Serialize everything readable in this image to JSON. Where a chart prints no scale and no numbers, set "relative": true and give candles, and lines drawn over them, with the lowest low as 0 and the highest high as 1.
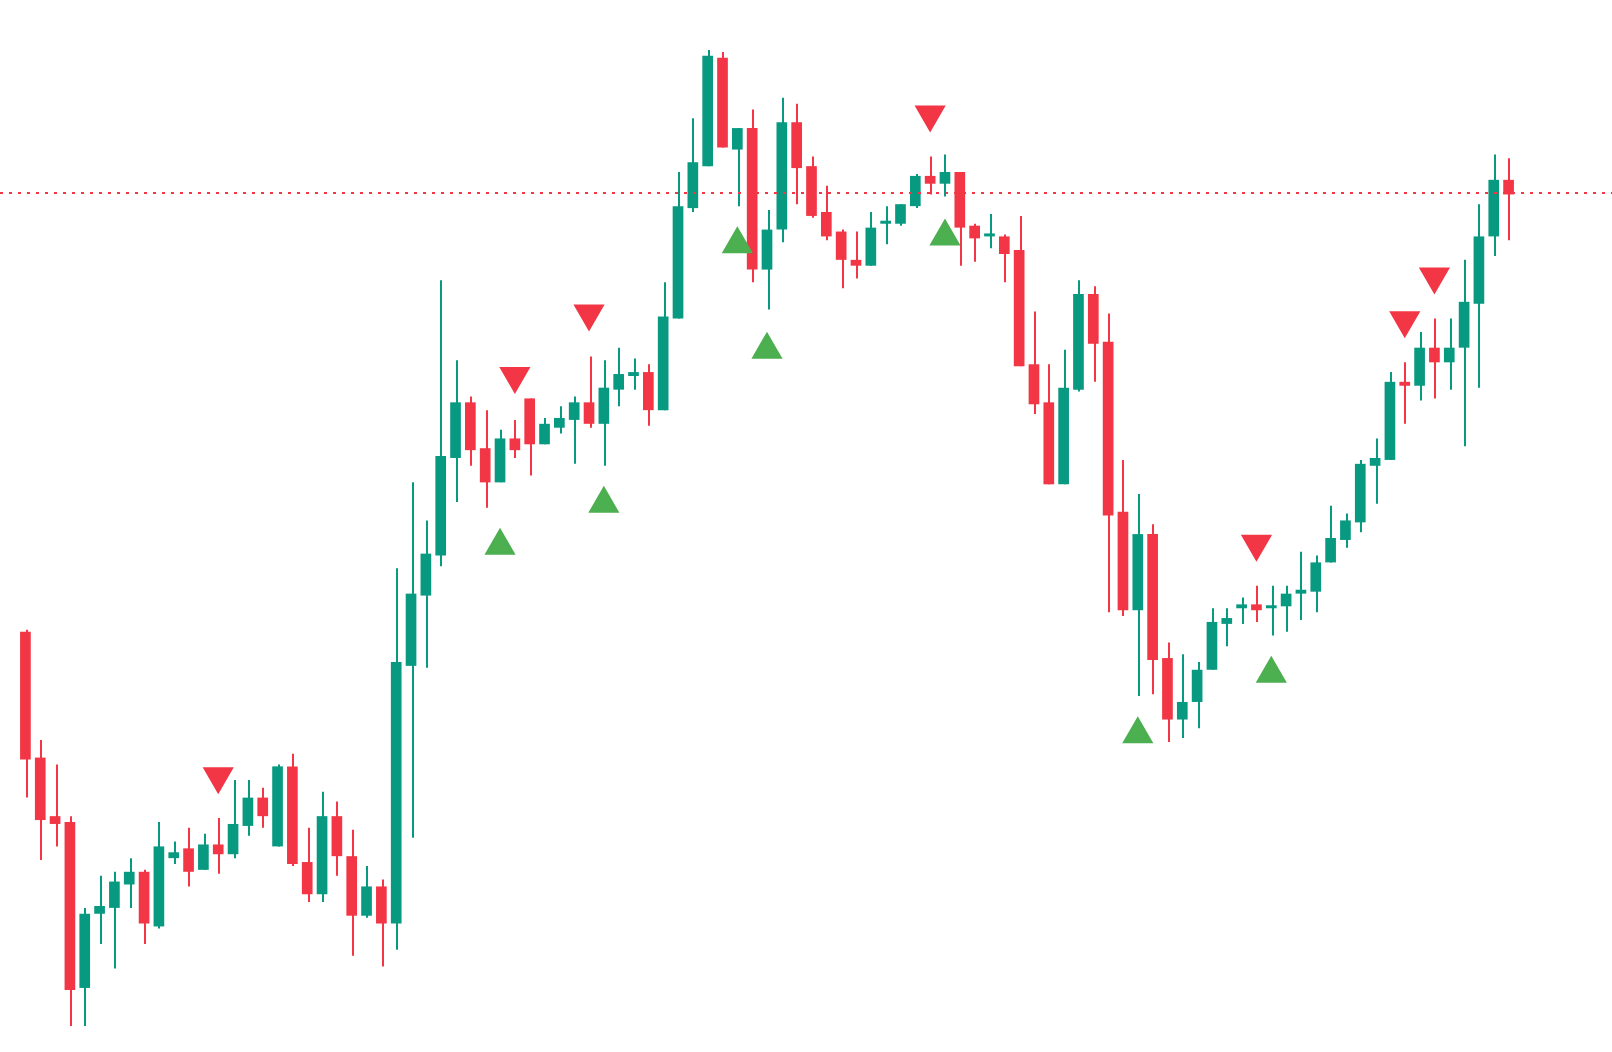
{
  "chart_data": {
    "type": "candlestick",
    "relative": true,
    "legend": false,
    "grid": false,
    "categories": [
      null,
      null,
      null,
      null,
      null,
      null,
      null,
      null,
      null,
      null,
      null,
      null,
      null,
      null,
      null,
      null,
      null,
      null,
      null,
      null,
      null,
      null,
      null,
      null,
      null,
      null,
      null,
      null,
      null,
      null,
      null,
      null,
      null,
      null,
      null,
      null,
      null,
      null,
      null,
      null,
      null,
      null,
      null,
      null,
      null,
      null,
      null,
      null,
      null,
      null,
      null,
      null,
      null,
      null,
      null,
      null,
      null,
      null,
      null,
      null,
      null,
      null,
      null,
      null,
      null,
      null,
      null,
      null,
      null,
      null,
      null,
      null,
      null,
      null,
      null,
      null,
      null,
      null,
      null,
      null,
      null,
      null,
      null,
      null,
      null,
      null,
      null,
      null,
      null,
      null,
      null,
      null,
      null,
      null,
      null,
      null,
      null,
      null,
      null,
      null,
      null
    ],
    "ohlc": [
      [
        0.404,
        0.406,
        0.234,
        0.273
      ],
      [
        0.275,
        0.293,
        0.17,
        0.211
      ],
      [
        0.215,
        0.268,
        0.184,
        0.207
      ],
      [
        0.209,
        0.215,
        0,
        0.037
      ],
      [
        0.039,
        0.121,
        0,
        0.115
      ],
      [
        0.115,
        0.154,
        0.084,
        0.123
      ],
      [
        0.121,
        0.158,
        0.059,
        0.148
      ],
      [
        0.145,
        0.172,
        0.121,
        0.158
      ],
      [
        0.158,
        0.16,
        0.084,
        0.105
      ],
      [
        0.102,
        0.209,
        0.1,
        0.184
      ],
      [
        0.172,
        0.189,
        0.166,
        0.178
      ],
      [
        0.182,
        0.203,
        0.143,
        0.158
      ],
      [
        0.16,
        0.197,
        0.16,
        0.186
      ],
      [
        0.186,
        0.213,
        0.156,
        0.176
      ],
      [
        0.176,
        0.252,
        0.172,
        0.207
      ],
      [
        0.205,
        0.252,
        0.195,
        0.234
      ],
      [
        0.234,
        0.244,
        0.203,
        0.215
      ],
      [
        0.184,
        0.268,
        0.184,
        0.266
      ],
      [
        0.266,
        0.279,
        0.164,
        0.166
      ],
      [
        0.168,
        0.203,
        0.127,
        0.135
      ],
      [
        0.135,
        0.24,
        0.127,
        0.215
      ],
      [
        0.215,
        0.23,
        0.154,
        0.174
      ],
      [
        0.174,
        0.201,
        0.072,
        0.113
      ],
      [
        0.113,
        0.164,
        0.111,
        0.143
      ],
      [
        0.143,
        0.15,
        0.061,
        0.105
      ],
      [
        0.105,
        0.469,
        0.078,
        0.373
      ],
      [
        0.369,
        0.557,
        0.193,
        0.443
      ],
      [
        0.441,
        0.518,
        0.367,
        0.484
      ],
      [
        0.482,
        0.764,
        0.471,
        0.584
      ],
      [
        0.582,
        0.682,
        0.537,
        0.639
      ],
      [
        0.639,
        0.645,
        0.574,
        0.59
      ],
      [
        0.592,
        0.631,
        0.531,
        0.557
      ],
      [
        0.557,
        0.611,
        0.557,
        0.602
      ],
      [
        0.602,
        0.621,
        0.582,
        0.59
      ],
      [
        0.643,
        0.643,
        0.564,
        0.596
      ],
      [
        0.596,
        0.623,
        0.596,
        0.617
      ],
      [
        0.613,
        0.635,
        0.607,
        0.623
      ],
      [
        0.621,
        0.645,
        0.576,
        0.639
      ],
      [
        0.639,
        0.686,
        0.613,
        0.617
      ],
      [
        0.617,
        0.682,
        0.574,
        0.654
      ],
      [
        0.652,
        0.695,
        0.635,
        0.668
      ],
      [
        0.666,
        0.684,
        0.652,
        0.67
      ],
      [
        0.67,
        0.678,
        0.615,
        0.631
      ],
      [
        0.631,
        0.762,
        0.631,
        0.727
      ],
      [
        0.725,
        0.875,
        0.725,
        0.84
      ],
      [
        0.838,
        0.93,
        0.834,
        0.885
      ],
      [
        0.881,
        1,
        0.881,
        0.994
      ],
      [
        0.992,
        0.998,
        0.9,
        0.9
      ],
      [
        0.898,
        0.92,
        0.84,
        0.92
      ],
      [
        0.92,
        0.939,
        0.762,
        0.775
      ],
      [
        0.775,
        0.836,
        0.734,
        0.816
      ],
      [
        0.816,
        0.951,
        0.803,
        0.926
      ],
      [
        0.926,
        0.945,
        0.842,
        0.879
      ],
      [
        0.881,
        0.891,
        0.828,
        0.83
      ],
      [
        0.834,
        0.861,
        0.805,
        0.809
      ],
      [
        0.814,
        0.816,
        0.756,
        0.785
      ],
      [
        0.785,
        0.814,
        0.766,
        0.779
      ],
      [
        0.779,
        0.834,
        0.779,
        0.818
      ],
      [
        0.822,
        0.84,
        0.801,
        0.824
      ],
      [
        0.822,
        0.842,
        0.82,
        0.842
      ],
      [
        0.84,
        0.873,
        0.838,
        0.871
      ],
      [
        0.871,
        0.891,
        0.852,
        0.863
      ],
      [
        0.863,
        0.893,
        0.85,
        0.875
      ],
      [
        0.875,
        0.875,
        0.779,
        0.818
      ],
      [
        0.82,
        0.822,
        0.783,
        0.807
      ],
      [
        0.809,
        0.832,
        0.797,
        0.811
      ],
      [
        0.809,
        0.811,
        0.762,
        0.791
      ],
      [
        0.795,
        0.83,
        0.676,
        0.676
      ],
      [
        0.678,
        0.732,
        0.627,
        0.637
      ],
      [
        0.639,
        0.678,
        0.555,
        0.555
      ],
      [
        0.555,
        0.693,
        0.555,
        0.654
      ],
      [
        0.652,
        0.764,
        0.65,
        0.75
      ],
      [
        0.75,
        0.758,
        0.66,
        0.699
      ],
      [
        0.701,
        0.73,
        0.424,
        0.523
      ],
      [
        0.527,
        0.58,
        0.42,
        0.426
      ],
      [
        0.426,
        0.545,
        0.338,
        0.504
      ],
      [
        0.504,
        0.514,
        0.34,
        0.375
      ],
      [
        0.377,
        0.393,
        0.291,
        0.314
      ],
      [
        0.314,
        0.381,
        0.295,
        0.332
      ],
      [
        0.332,
        0.373,
        0.305,
        0.365
      ],
      [
        0.365,
        0.428,
        0.365,
        0.414
      ],
      [
        0.412,
        0.428,
        0.389,
        0.418
      ],
      [
        0.428,
        0.439,
        0.412,
        0.432
      ],
      [
        0.432,
        0.451,
        0.414,
        0.426
      ],
      [
        0.428,
        0.451,
        0.4,
        0.43
      ],
      [
        0.43,
        0.451,
        0.404,
        0.443
      ],
      [
        0.443,
        0.486,
        0.416,
        0.447
      ],
      [
        0.445,
        0.482,
        0.424,
        0.475
      ],
      [
        0.475,
        0.533,
        0.475,
        0.5
      ],
      [
        0.498,
        0.525,
        0.49,
        0.518
      ],
      [
        0.516,
        0.58,
        0.506,
        0.576
      ],
      [
        0.574,
        0.602,
        0.535,
        0.582
      ],
      [
        0.58,
        0.67,
        0.58,
        0.66
      ],
      [
        0.66,
        0.68,
        0.617,
        0.656
      ],
      [
        0.656,
        0.711,
        0.641,
        0.695
      ],
      [
        0.695,
        0.725,
        0.643,
        0.68
      ],
      [
        0.68,
        0.725,
        0.652,
        0.695
      ],
      [
        0.695,
        0.785,
        0.594,
        0.742
      ],
      [
        0.74,
        0.842,
        0.654,
        0.809
      ],
      [
        0.809,
        0.893,
        0.789,
        0.867
      ],
      [
        0.867,
        0.889,
        0.805,
        0.852
      ]
    ],
    "colors": [
      "#f23645",
      "#f23645",
      "#f23645",
      "#f23645",
      "#089981",
      "#089981",
      "#089981",
      "#089981",
      "#f23645",
      "#089981",
      "#089981",
      "#f23645",
      "#089981",
      "#f23645",
      "#089981",
      "#089981",
      "#f23645",
      "#089981",
      "#f23645",
      "#f23645",
      "#089981",
      "#f23645",
      "#f23645",
      "#089981",
      "#f23645",
      "#089981",
      "#089981",
      "#089981",
      "#089981",
      "#089981",
      "#f23645",
      "#f23645",
      "#089981",
      "#f23645",
      "#f23645",
      "#089981",
      "#089981",
      "#089981",
      "#f23645",
      "#089981",
      "#089981",
      "#089981",
      "#f23645",
      "#089981",
      "#089981",
      "#089981",
      "#089981",
      "#f23645",
      "#089981",
      "#f23645",
      "#089981",
      "#089981",
      "#f23645",
      "#f23645",
      "#f23645",
      "#f23645",
      "#f23645",
      "#089981",
      "#089981",
      "#089981",
      "#089981",
      "#f23645",
      "#089981",
      "#f23645",
      "#f23645",
      "#089981",
      "#f23645",
      "#f23645",
      "#f23645",
      "#f23645",
      "#089981",
      "#089981",
      "#f23645",
      "#f23645",
      "#f23645",
      "#089981",
      "#f23645",
      "#f23645",
      "#089981",
      "#089981",
      "#089981",
      "#089981",
      "#089981",
      "#f23645",
      "#089981",
      "#089981",
      "#089981",
      "#089981",
      "#089981",
      "#089981",
      "#089981",
      "#089981",
      "#089981",
      "#f23645",
      "#089981",
      "#f23645",
      "#089981",
      "#089981",
      "#089981",
      "#089981",
      "#f23645"
    ],
    "series": [
      {
        "type": "scatter",
        "marker": "triangle",
        "color": "#f23645",
        "values": [
          null,
          null,
          null,
          null,
          null,
          null,
          null,
          null,
          null,
          null,
          null,
          null,
          null,
          0.256,
          null,
          null,
          null,
          null,
          null,
          null,
          null,
          null,
          null,
          null,
          null,
          null,
          null,
          null,
          null,
          null,
          null,
          null,
          null,
          0.666,
          null,
          null,
          null,
          null,
          0.73,
          null,
          null,
          null,
          null,
          null,
          null,
          null,
          null,
          null,
          null,
          null,
          null,
          null,
          null,
          null,
          null,
          null,
          null,
          null,
          null,
          null,
          null,
          0.934,
          null,
          null,
          null,
          null,
          null,
          null,
          null,
          null,
          null,
          null,
          null,
          null,
          null,
          null,
          null,
          null,
          null,
          null,
          null,
          null,
          null,
          0.494,
          null,
          null,
          null,
          null,
          null,
          null,
          null,
          null,
          null,
          0.723,
          null,
          0.768,
          null,
          null,
          null,
          null,
          null
        ]
      },
      {
        "type": "scatter",
        "marker": "triangle",
        "color": "#4caf50",
        "values": [
          null,
          null,
          null,
          null,
          null,
          null,
          null,
          null,
          null,
          null,
          null,
          null,
          null,
          null,
          null,
          null,
          null,
          null,
          null,
          null,
          null,
          null,
          null,
          null,
          null,
          null,
          null,
          null,
          null,
          null,
          null,
          null,
          0.492,
          null,
          null,
          null,
          null,
          null,
          null,
          0.535,
          null,
          null,
          null,
          null,
          null,
          null,
          null,
          null,
          0.801,
          null,
          0.693,
          null,
          null,
          null,
          null,
          null,
          null,
          null,
          null,
          null,
          null,
          null,
          0.809,
          null,
          null,
          null,
          null,
          null,
          null,
          null,
          null,
          null,
          null,
          null,
          null,
          0.299,
          null,
          null,
          null,
          null,
          null,
          null,
          null,
          null,
          0.361,
          null,
          null,
          null,
          null,
          null,
          null,
          null,
          null,
          null,
          null,
          null,
          null,
          null,
          null,
          null,
          null
        ]
      }
    ],
    "ref_lines": [
      {
        "axis": "y",
        "value": 0.854,
        "color": "#f23645",
        "line_style": "dotted"
      }
    ]
  }
}
